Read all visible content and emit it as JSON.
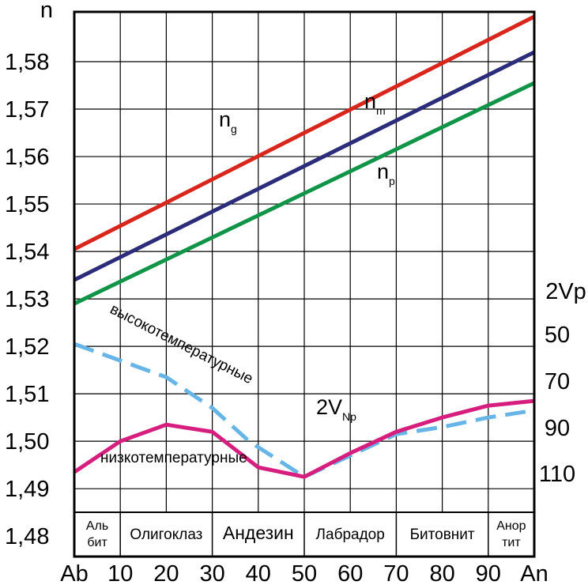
{
  "chart_data": {
    "type": "line",
    "y_axis": {
      "title": "n",
      "ticks": [
        "1,58",
        "1,57",
        "1,56",
        "1,55",
        "1,54",
        "1,53",
        "1,52",
        "1,51",
        "1,50",
        "1,49",
        "1,48"
      ],
      "tick_values": [
        1.58,
        1.57,
        1.56,
        1.55,
        1.54,
        1.53,
        1.52,
        1.51,
        1.5,
        1.49,
        1.48
      ],
      "range": [
        1.4757,
        1.5905
      ]
    },
    "x_axis": {
      "ticks": [
        "Ab",
        "10",
        "20",
        "30",
        "40",
        "50",
        "60",
        "70",
        "80",
        "90",
        "An"
      ],
      "tick_values": [
        0,
        10,
        20,
        30,
        40,
        50,
        60,
        70,
        80,
        90,
        100
      ],
      "range": [
        0,
        100
      ]
    },
    "right_axis": {
      "title": "2Vp",
      "ticks": [
        "50",
        "70",
        "90",
        "110"
      ]
    },
    "grid": true,
    "series": [
      {
        "key": "ng",
        "name": "n",
        "name_sub": "g",
        "color": "#d9261c",
        "style": "solid",
        "x": [
          0,
          100
        ],
        "y": [
          1.5405,
          1.5895
        ]
      },
      {
        "key": "nm",
        "name": "n",
        "name_sub": "m",
        "color": "#2b2c7a",
        "style": "solid",
        "x": [
          0,
          100
        ],
        "y": [
          1.534,
          1.582
        ]
      },
      {
        "key": "np",
        "name": "n",
        "name_sub": "p",
        "color": "#109447",
        "style": "solid",
        "x": [
          0,
          100
        ],
        "y": [
          1.529,
          1.5755
        ]
      },
      {
        "key": "high",
        "name": "высокотемпературные",
        "color": "#66b5e6",
        "style": "dashed",
        "x": [
          0,
          10,
          20,
          30,
          38,
          50,
          60,
          70,
          80,
          90,
          100
        ],
        "y": [
          1.5205,
          1.517,
          1.5135,
          1.507,
          1.5,
          1.4925,
          1.497,
          1.5015,
          1.503,
          1.505,
          1.5065
        ]
      },
      {
        "key": "low",
        "name": "низкотемпературные",
        "color": "#d61e7e",
        "style": "solid",
        "x": [
          0,
          10,
          20,
          30,
          40,
          50,
          60,
          70,
          80,
          90,
          100
        ],
        "y": [
          1.4935,
          1.5,
          1.5035,
          1.502,
          1.4945,
          1.4925,
          1.4975,
          1.502,
          1.505,
          1.5075,
          1.5085
        ]
      }
    ],
    "annotations": {
      "twoV_main": "2V",
      "twoV_sub": "Np"
    },
    "minerals": [
      {
        "line1": "Аль",
        "line2": "бит",
        "range": [
          0,
          10
        ]
      },
      {
        "line1": "Олигоклаз",
        "line2": "",
        "range": [
          10,
          30
        ]
      },
      {
        "line1": "Андезин",
        "line2": "",
        "range": [
          30,
          50
        ]
      },
      {
        "line1": "Лабрадор",
        "line2": "",
        "range": [
          50,
          70
        ]
      },
      {
        "line1": "Битовнит",
        "line2": "",
        "range": [
          70,
          90
        ]
      },
      {
        "line1": "Анор",
        "line2": "тит",
        "range": [
          90,
          100
        ]
      }
    ]
  }
}
